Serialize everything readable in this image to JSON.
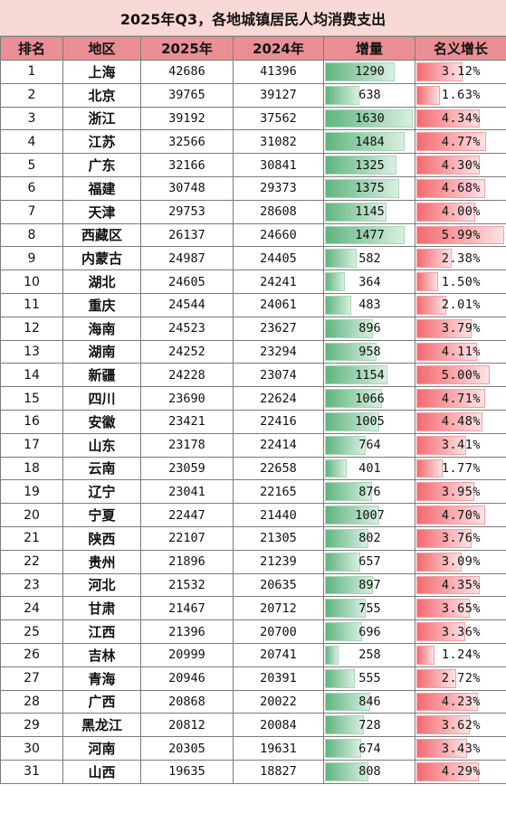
{
  "title": "2025年Q3，各地城镇居民人均消费支出",
  "headers": [
    "排名",
    "地区",
    "2025年",
    "2024年",
    "增量",
    "名义增长"
  ],
  "colors": {
    "title_bg": "#f8d9d5",
    "header_bg": "#e98f94",
    "increase_bar": "#5fb57e",
    "growth_bar": "#f36a70"
  },
  "rows": [
    {
      "rank": "1",
      "region": "上海",
      "y2025": "42686",
      "y2024": "41396",
      "increase": "1290",
      "growth": "3.12%"
    },
    {
      "rank": "2",
      "region": "北京",
      "y2025": "39765",
      "y2024": "39127",
      "increase": "638",
      "growth": "1.63%"
    },
    {
      "rank": "3",
      "region": "浙江",
      "y2025": "39192",
      "y2024": "37562",
      "increase": "1630",
      "growth": "4.34%"
    },
    {
      "rank": "4",
      "region": "江苏",
      "y2025": "32566",
      "y2024": "31082",
      "increase": "1484",
      "growth": "4.77%"
    },
    {
      "rank": "5",
      "region": "广东",
      "y2025": "32166",
      "y2024": "30841",
      "increase": "1325",
      "growth": "4.30%"
    },
    {
      "rank": "6",
      "region": "福建",
      "y2025": "30748",
      "y2024": "29373",
      "increase": "1375",
      "growth": "4.68%"
    },
    {
      "rank": "7",
      "region": "天津",
      "y2025": "29753",
      "y2024": "28608",
      "increase": "1145",
      "growth": "4.00%"
    },
    {
      "rank": "8",
      "region": "西藏区",
      "y2025": "26137",
      "y2024": "24660",
      "increase": "1477",
      "growth": "5.99%"
    },
    {
      "rank": "9",
      "region": "内蒙古",
      "y2025": "24987",
      "y2024": "24405",
      "increase": "582",
      "growth": "2.38%"
    },
    {
      "rank": "10",
      "region": "湖北",
      "y2025": "24605",
      "y2024": "24241",
      "increase": "364",
      "growth": "1.50%"
    },
    {
      "rank": "11",
      "region": "重庆",
      "y2025": "24544",
      "y2024": "24061",
      "increase": "483",
      "growth": "2.01%"
    },
    {
      "rank": "12",
      "region": "海南",
      "y2025": "24523",
      "y2024": "23627",
      "increase": "896",
      "growth": "3.79%"
    },
    {
      "rank": "13",
      "region": "湖南",
      "y2025": "24252",
      "y2024": "23294",
      "increase": "958",
      "growth": "4.11%"
    },
    {
      "rank": "14",
      "region": "新疆",
      "y2025": "24228",
      "y2024": "23074",
      "increase": "1154",
      "growth": "5.00%"
    },
    {
      "rank": "15",
      "region": "四川",
      "y2025": "23690",
      "y2024": "22624",
      "increase": "1066",
      "growth": "4.71%"
    },
    {
      "rank": "16",
      "region": "安徽",
      "y2025": "23421",
      "y2024": "22416",
      "increase": "1005",
      "growth": "4.48%"
    },
    {
      "rank": "17",
      "region": "山东",
      "y2025": "23178",
      "y2024": "22414",
      "increase": "764",
      "growth": "3.41%"
    },
    {
      "rank": "18",
      "region": "云南",
      "y2025": "23059",
      "y2024": "22658",
      "increase": "401",
      "growth": "1.77%"
    },
    {
      "rank": "19",
      "region": "辽宁",
      "y2025": "23041",
      "y2024": "22165",
      "increase": "876",
      "growth": "3.95%"
    },
    {
      "rank": "20",
      "region": "宁夏",
      "y2025": "22447",
      "y2024": "21440",
      "increase": "1007",
      "growth": "4.70%"
    },
    {
      "rank": "21",
      "region": "陕西",
      "y2025": "22107",
      "y2024": "21305",
      "increase": "802",
      "growth": "3.76%"
    },
    {
      "rank": "22",
      "region": "贵州",
      "y2025": "21896",
      "y2024": "21239",
      "increase": "657",
      "growth": "3.09%"
    },
    {
      "rank": "23",
      "region": "河北",
      "y2025": "21532",
      "y2024": "20635",
      "increase": "897",
      "growth": "4.35%"
    },
    {
      "rank": "24",
      "region": "甘肃",
      "y2025": "21467",
      "y2024": "20712",
      "increase": "755",
      "growth": "3.65%"
    },
    {
      "rank": "25",
      "region": "江西",
      "y2025": "21396",
      "y2024": "20700",
      "increase": "696",
      "growth": "3.36%"
    },
    {
      "rank": "26",
      "region": "吉林",
      "y2025": "20999",
      "y2024": "20741",
      "increase": "258",
      "growth": "1.24%"
    },
    {
      "rank": "27",
      "region": "青海",
      "y2025": "20946",
      "y2024": "20391",
      "increase": "555",
      "growth": "2.72%"
    },
    {
      "rank": "28",
      "region": "广西",
      "y2025": "20868",
      "y2024": "20022",
      "increase": "846",
      "growth": "4.23%"
    },
    {
      "rank": "29",
      "region": "黑龙江",
      "y2025": "20812",
      "y2024": "20084",
      "increase": "728",
      "growth": "3.62%"
    },
    {
      "rank": "30",
      "region": "河南",
      "y2025": "20305",
      "y2024": "19631",
      "increase": "674",
      "growth": "3.43%"
    },
    {
      "rank": "31",
      "region": "山西",
      "y2025": "19635",
      "y2024": "18827",
      "increase": "808",
      "growth": "4.29%"
    }
  ]
}
